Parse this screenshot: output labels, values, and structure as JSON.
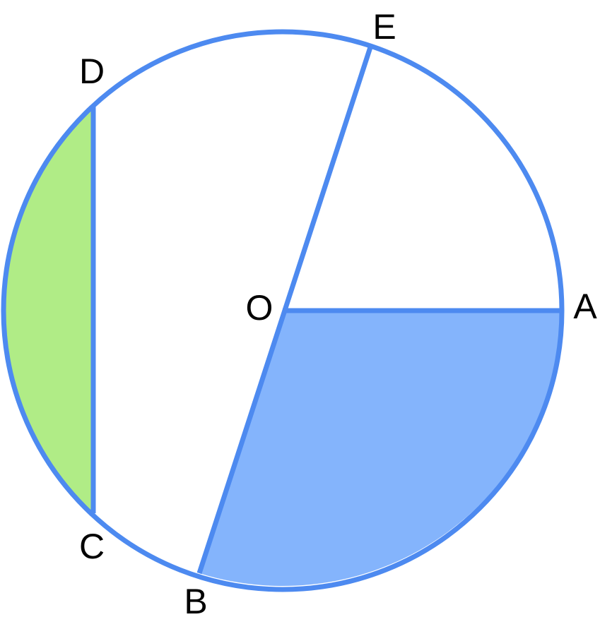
{
  "points": [
    {
      "label": "D"
    },
    {
      "label": "E"
    },
    {
      "label": "O"
    },
    {
      "label": "A"
    },
    {
      "label": "C"
    },
    {
      "label": "B"
    }
  ]
}
